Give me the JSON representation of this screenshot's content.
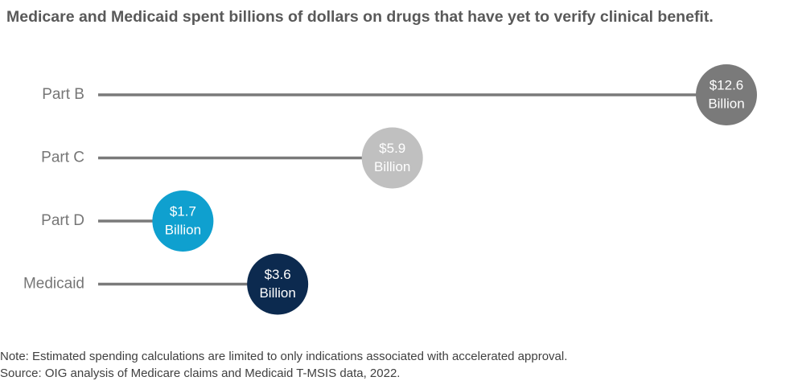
{
  "title": "Medicare and Medicaid spent billions of dollars on drugs that have yet to verify clinical benefit.",
  "chart_data": {
    "type": "bar",
    "title": "Medicare and Medicaid spent billions of dollars on drugs that have yet to verify clinical benefit.",
    "categories": [
      "Part B",
      "Part C",
      "Part D",
      "Medicaid"
    ],
    "values": [
      12.6,
      5.9,
      1.7,
      3.6
    ],
    "value_labels": [
      [
        "$12.6",
        "Billion"
      ],
      [
        "$5.9",
        "Billion"
      ],
      [
        "$1.7",
        "Billion"
      ],
      [
        "$3.6",
        "Billion"
      ]
    ],
    "colors": [
      "#7a7a7a",
      "#c0c0c0",
      "#0fa0cf",
      "#0c2a4f"
    ],
    "line_color": "#7a7a7a",
    "xlim": [
      0,
      12.6
    ],
    "grid": false,
    "legend": "none",
    "xlabel": "",
    "ylabel": ""
  },
  "note": "Note: Estimated spending calculations are limited to only indications associated with accelerated approval.",
  "source": "Source: OIG analysis of Medicare claims and Medicaid T-MSIS data, 2022."
}
